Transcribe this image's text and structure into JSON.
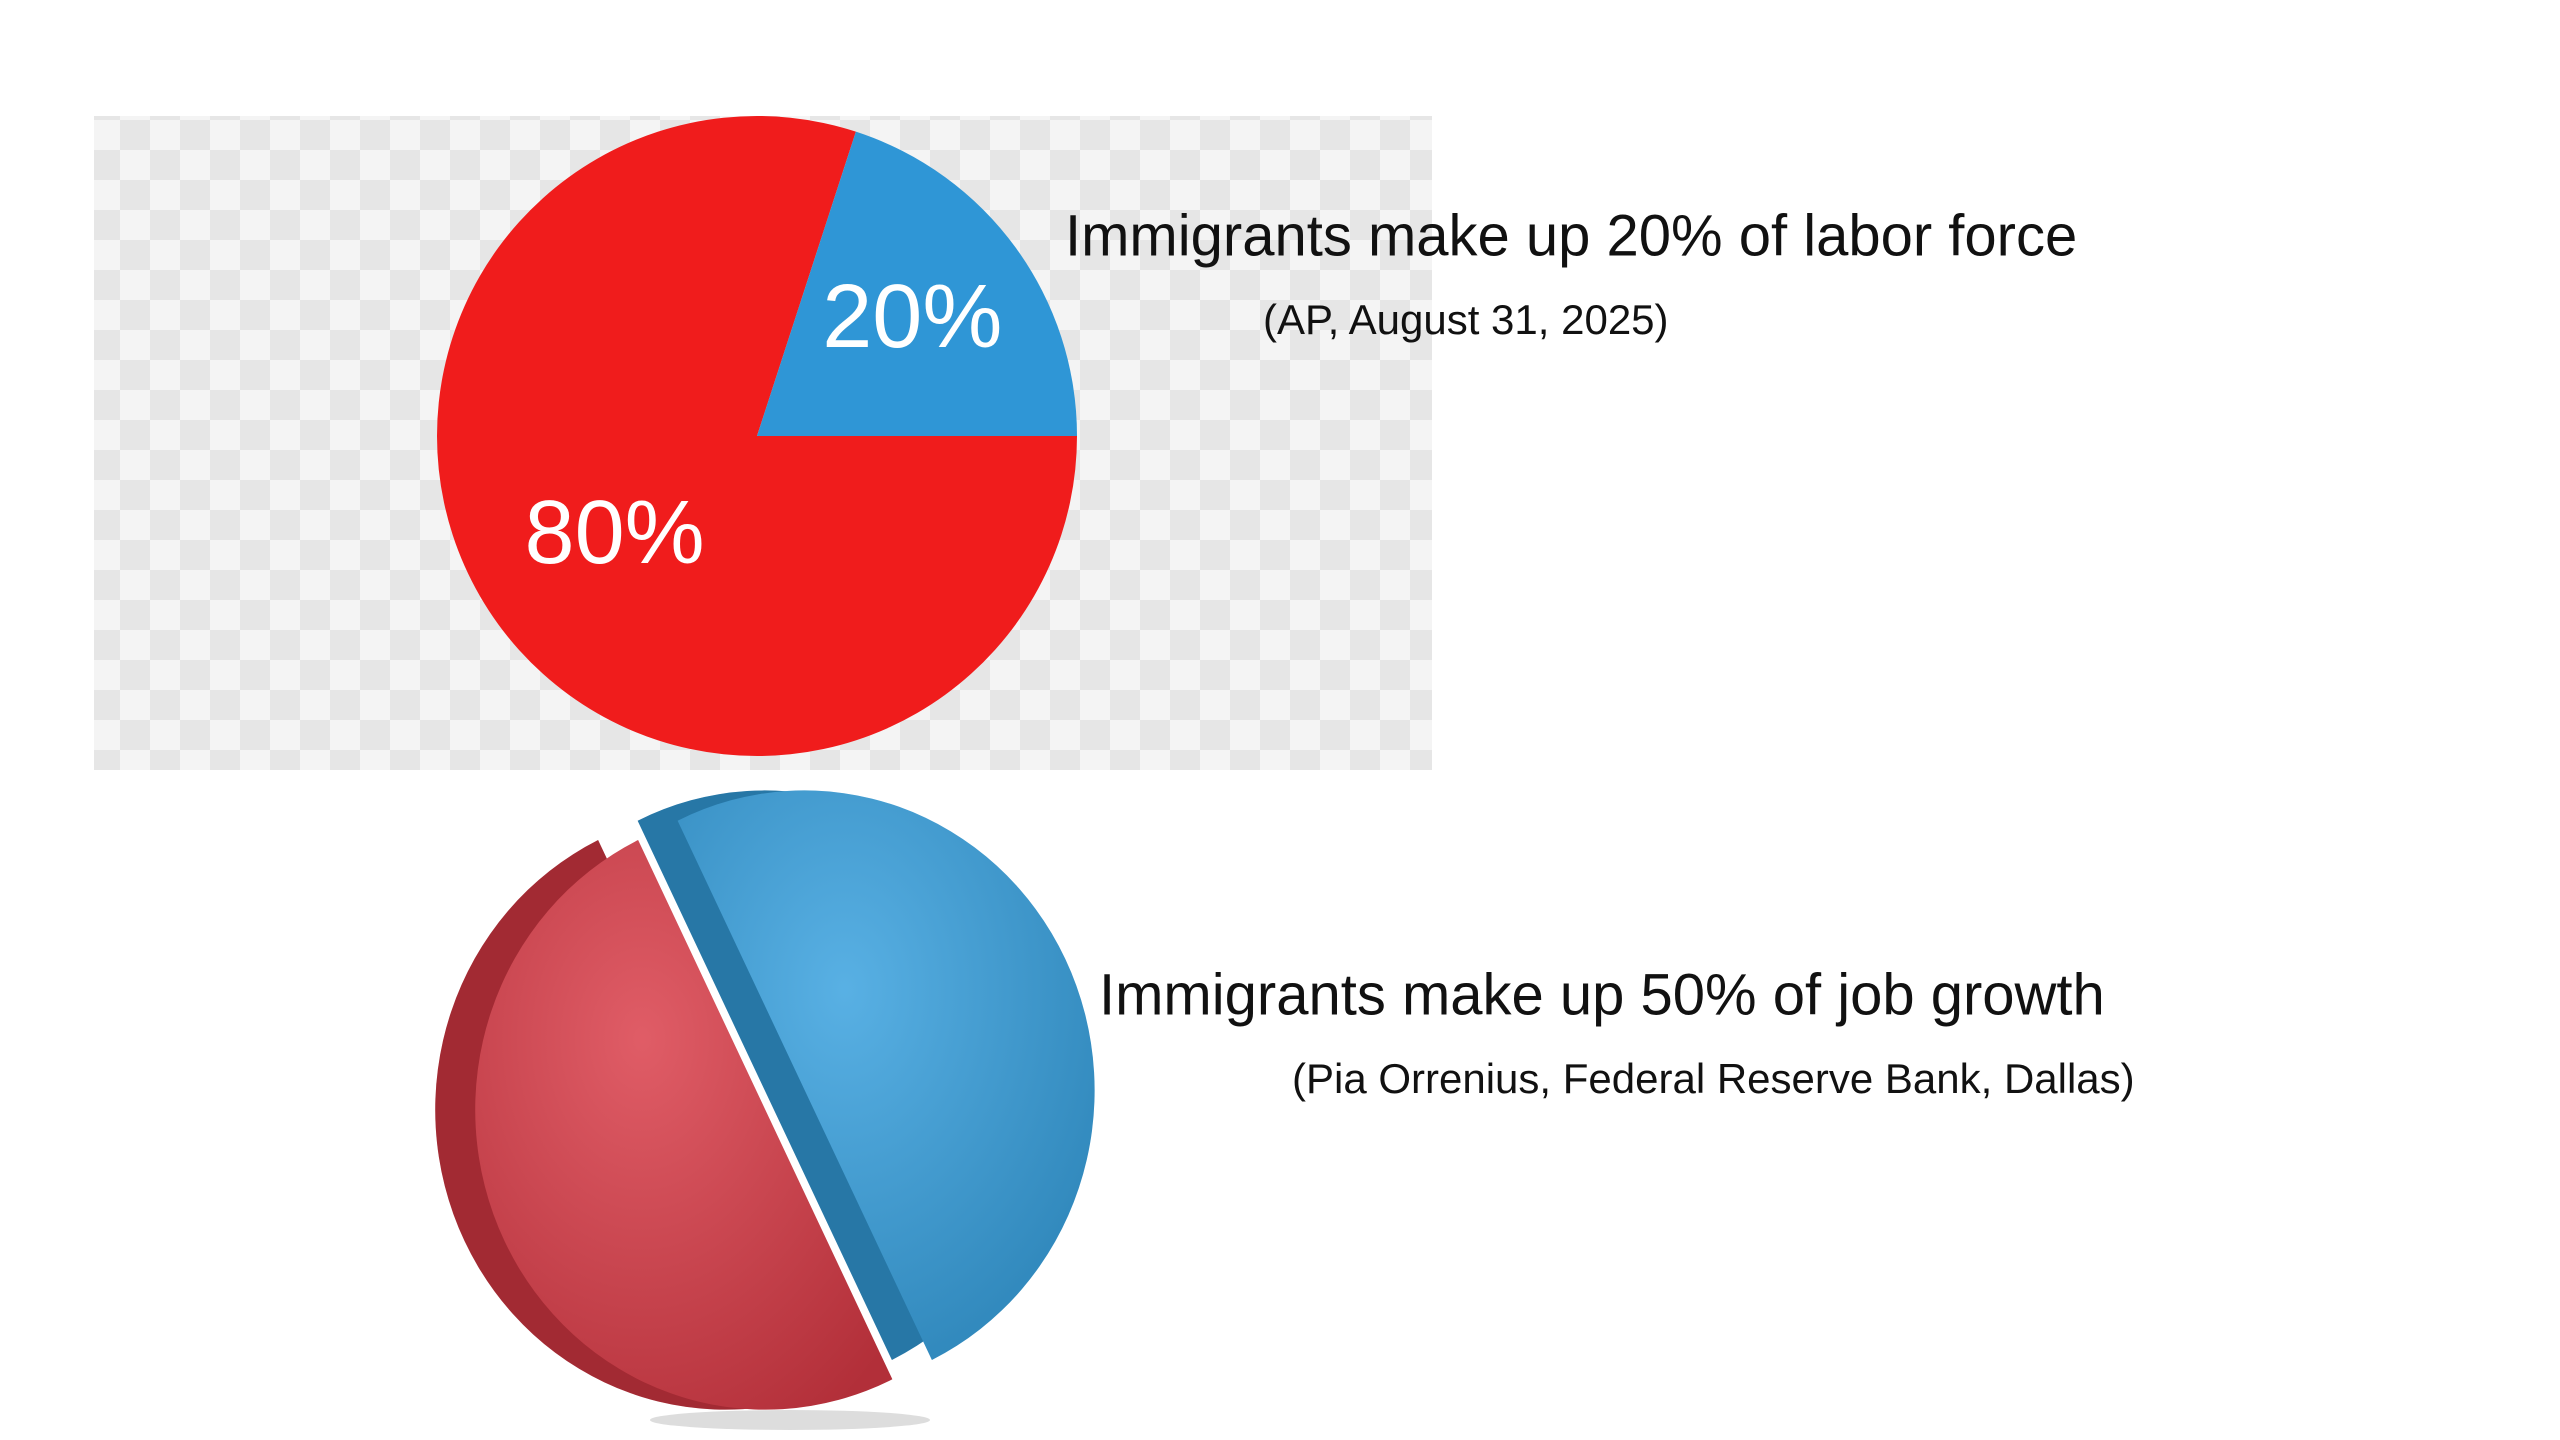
{
  "chart_data": [
    {
      "type": "pie",
      "title": "Immigrants make up 20% of labor force",
      "subtitle": "(AP, August 31, 2025)",
      "values": [
        80,
        20
      ],
      "value_labels": [
        "80%",
        "20%"
      ],
      "colors": [
        "#f01c1c",
        "#2f96d6"
      ]
    },
    {
      "type": "pie",
      "title": "Immigrants make up 50% of job growth",
      "subtitle": "(Pia Orrenius, Federal Reserve Bank, Dallas)",
      "values": [
        50,
        50
      ],
      "colors": [
        "#d93945",
        "#349fde"
      ]
    }
  ]
}
